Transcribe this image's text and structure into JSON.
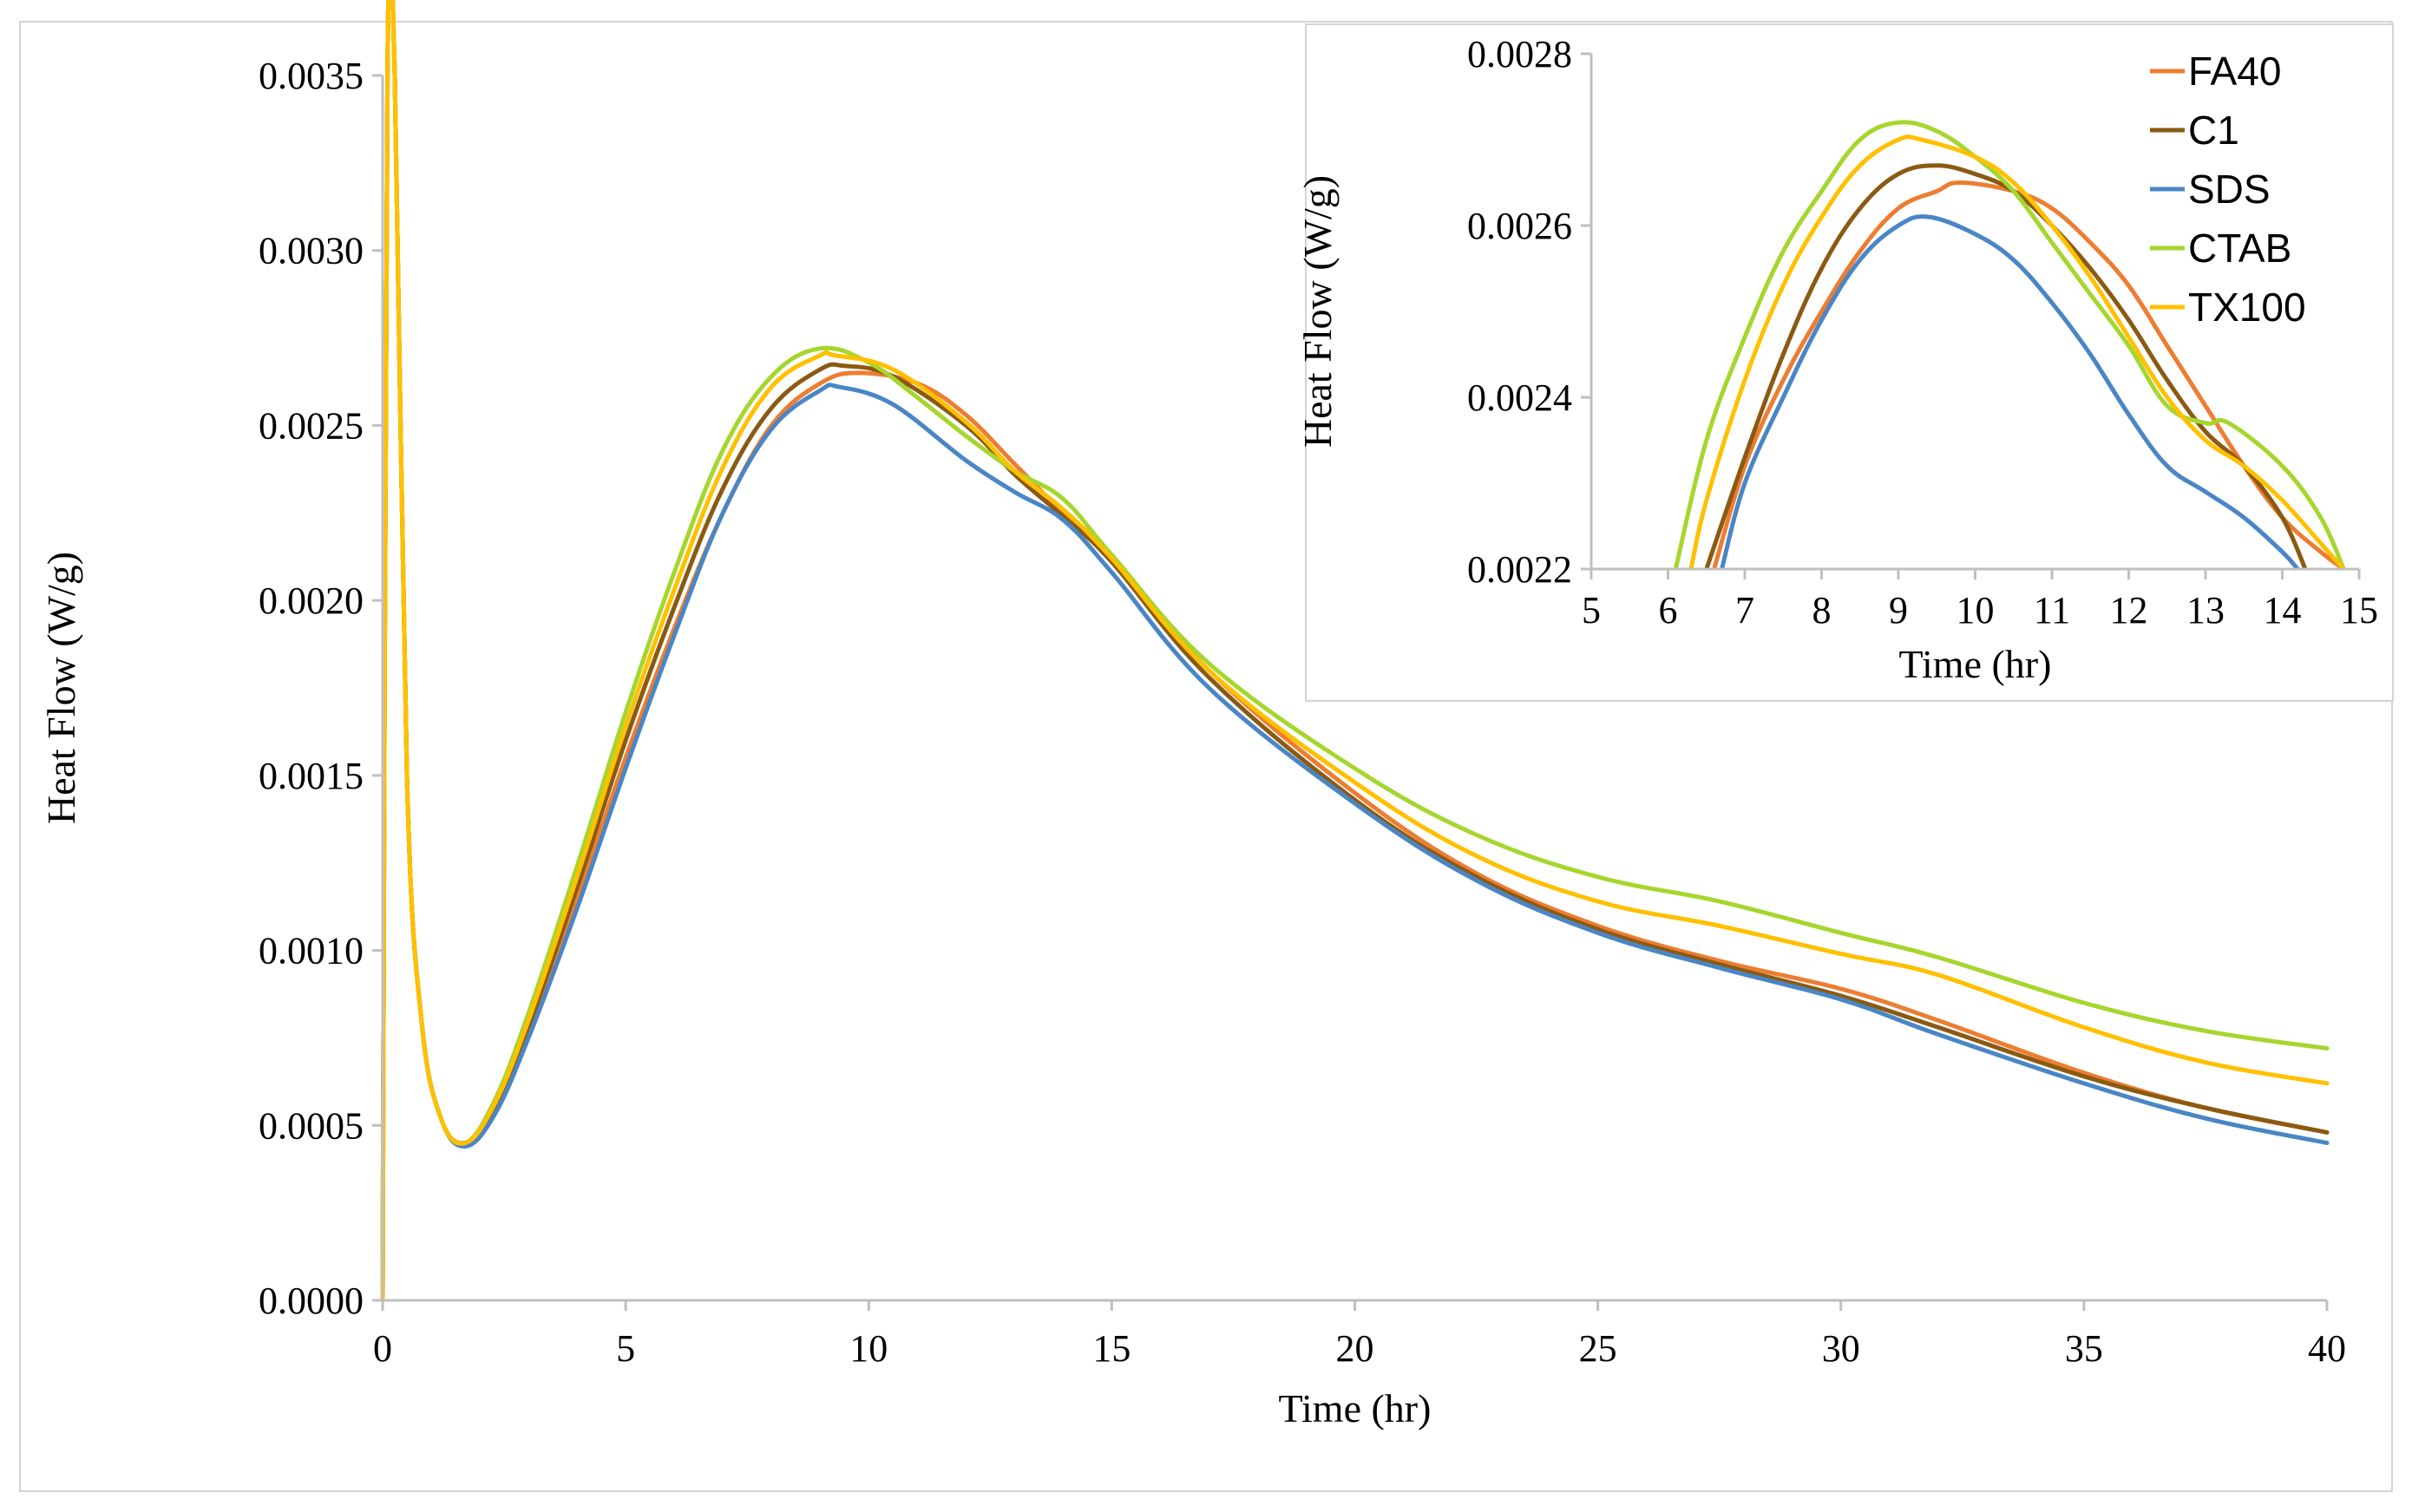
{
  "chart_data": [
    {
      "type": "line",
      "title": "",
      "xlabel": "Time (hr)",
      "ylabel": "Heat Flow (W/g)",
      "xlim": [
        0,
        40
      ],
      "ylim": [
        0,
        0.0035
      ],
      "x_ticks": [
        "0",
        "5",
        "10",
        "15",
        "20",
        "25",
        "30",
        "35",
        "40"
      ],
      "y_ticks": [
        "0.0000",
        "0.0005",
        "0.0010",
        "0.0015",
        "0.0020",
        "0.0025",
        "0.0030",
        "0.0035"
      ],
      "grid": false,
      "legend": "none",
      "series": [
        {
          "name": "FA40",
          "color": "#ed7d31",
          "points": [
            [
              0,
              0
            ],
            [
              0.1,
              0.0035
            ],
            [
              0.25,
              0.0035
            ],
            [
              0.5,
              0.0015
            ],
            [
              0.8,
              0.0008
            ],
            [
              1.2,
              0.00052
            ],
            [
              1.7,
              0.00045
            ],
            [
              2.3,
              0.00055
            ],
            [
              3,
              0.00078
            ],
            [
              4,
              0.00115
            ],
            [
              5,
              0.00155
            ],
            [
              6,
              0.00192
            ],
            [
              7,
              0.00225
            ],
            [
              8,
              0.0025
            ],
            [
              9,
              0.00262
            ],
            [
              9.8,
              0.00265
            ],
            [
              11,
              0.00262
            ],
            [
              12,
              0.00253
            ],
            [
              13,
              0.00239
            ],
            [
              14,
              0.00225
            ],
            [
              15,
              0.00212
            ],
            [
              17,
              0.0018
            ],
            [
              20,
              0.00145
            ],
            [
              22.5,
              0.00122
            ],
            [
              25,
              0.00107
            ],
            [
              27.5,
              0.00097
            ],
            [
              30,
              0.00089
            ],
            [
              32,
              0.0008
            ],
            [
              35,
              0.00065
            ],
            [
              37.5,
              0.00055
            ],
            [
              40,
              0.00048
            ]
          ]
        },
        {
          "name": "C1",
          "color": "#8b5a12",
          "points": [
            [
              0,
              0
            ],
            [
              0.1,
              0.0035
            ],
            [
              0.25,
              0.0035
            ],
            [
              0.5,
              0.0015
            ],
            [
              0.8,
              0.0008
            ],
            [
              1.2,
              0.00052
            ],
            [
              1.7,
              0.00045
            ],
            [
              2.3,
              0.00055
            ],
            [
              3,
              0.00078
            ],
            [
              4,
              0.00118
            ],
            [
              5,
              0.0016
            ],
            [
              6,
              0.00198
            ],
            [
              7,
              0.00232
            ],
            [
              8,
              0.00255
            ],
            [
              9,
              0.00266
            ],
            [
              9.5,
              0.00267
            ],
            [
              10.5,
              0.00264
            ],
            [
              12,
              0.0025
            ],
            [
              13,
              0.00236
            ],
            [
              14,
              0.00224
            ],
            [
              15,
              0.00211
            ],
            [
              17,
              0.00178
            ],
            [
              20,
              0.00143
            ],
            [
              22.5,
              0.00121
            ],
            [
              25,
              0.00106
            ],
            [
              27.5,
              0.00096
            ],
            [
              30,
              0.00087
            ],
            [
              32,
              0.00078
            ],
            [
              35,
              0.00064
            ],
            [
              37.5,
              0.00055
            ],
            [
              40,
              0.00048
            ]
          ]
        },
        {
          "name": "SDS",
          "color": "#4a86c5",
          "points": [
            [
              0,
              0
            ],
            [
              0.1,
              0.0035
            ],
            [
              0.25,
              0.0035
            ],
            [
              0.5,
              0.0015
            ],
            [
              0.8,
              0.0008
            ],
            [
              1.2,
              0.00052
            ],
            [
              1.7,
              0.00044
            ],
            [
              2.3,
              0.00053
            ],
            [
              3,
              0.00075
            ],
            [
              4,
              0.00112
            ],
            [
              5,
              0.00152
            ],
            [
              6,
              0.0019
            ],
            [
              7,
              0.00225
            ],
            [
              8,
              0.00249
            ],
            [
              9,
              0.0026
            ],
            [
              9.4,
              0.00261
            ],
            [
              10.5,
              0.00256
            ],
            [
              12,
              0.0024
            ],
            [
              13,
              0.00231
            ],
            [
              14,
              0.00223
            ],
            [
              15,
              0.00208
            ],
            [
              17,
              0.00175
            ],
            [
              20,
              0.00142
            ],
            [
              22.5,
              0.0012
            ],
            [
              25,
              0.00105
            ],
            [
              27.5,
              0.00095
            ],
            [
              30,
              0.00086
            ],
            [
              32,
              0.00076
            ],
            [
              35,
              0.00062
            ],
            [
              37.5,
              0.00052
            ],
            [
              40,
              0.00045
            ]
          ]
        },
        {
          "name": "CTAB",
          "color": "#a6d62e",
          "points": [
            [
              0,
              0
            ],
            [
              0.1,
              0.0035
            ],
            [
              0.25,
              0.0035
            ],
            [
              0.5,
              0.0015
            ],
            [
              0.8,
              0.0008
            ],
            [
              1.2,
              0.00052
            ],
            [
              1.7,
              0.00045
            ],
            [
              2.3,
              0.00057
            ],
            [
              3,
              0.00082
            ],
            [
              4,
              0.00124
            ],
            [
              5,
              0.00168
            ],
            [
              6,
              0.00208
            ],
            [
              7,
              0.00243
            ],
            [
              8,
              0.00264
            ],
            [
              9,
              0.00272
            ],
            [
              10,
              0.00268
            ],
            [
              11,
              0.00258
            ],
            [
              12,
              0.00247
            ],
            [
              13,
              0.00237
            ],
            [
              14,
              0.00229
            ],
            [
              15,
              0.00213
            ],
            [
              17,
              0.00182
            ],
            [
              20,
              0.00152
            ],
            [
              22.5,
              0.00133
            ],
            [
              25,
              0.00121
            ],
            [
              27.5,
              0.00114
            ],
            [
              30,
              0.00105
            ],
            [
              32,
              0.00098
            ],
            [
              35,
              0.00085
            ],
            [
              37.5,
              0.00077
            ],
            [
              40,
              0.00072
            ]
          ]
        },
        {
          "name": "TX100",
          "color": "#ffc000",
          "points": [
            [
              0,
              0
            ],
            [
              0.1,
              0.0035
            ],
            [
              0.25,
              0.0035
            ],
            [
              0.5,
              0.0015
            ],
            [
              0.8,
              0.0008
            ],
            [
              1.2,
              0.00052
            ],
            [
              1.7,
              0.00045
            ],
            [
              2.3,
              0.00056
            ],
            [
              3,
              0.0008
            ],
            [
              4,
              0.00121
            ],
            [
              5,
              0.00164
            ],
            [
              6,
              0.00203
            ],
            [
              7,
              0.00238
            ],
            [
              8,
              0.00261
            ],
            [
              9,
              0.0027
            ],
            [
              9.3,
              0.0027
            ],
            [
              10.5,
              0.00266
            ],
            [
              12,
              0.00251
            ],
            [
              13,
              0.00237
            ],
            [
              14,
              0.00226
            ],
            [
              15,
              0.00212
            ],
            [
              17,
              0.0018
            ],
            [
              20,
              0.00148
            ],
            [
              22.5,
              0.00127
            ],
            [
              25,
              0.00114
            ],
            [
              27.5,
              0.00107
            ],
            [
              30,
              0.00099
            ],
            [
              32,
              0.00093
            ],
            [
              35,
              0.00078
            ],
            [
              37.5,
              0.00068
            ],
            [
              40,
              0.00062
            ]
          ]
        }
      ]
    },
    {
      "type": "line",
      "title": "",
      "xlabel": "Time (hr)",
      "ylabel": "Heat Flow (W/g)",
      "xlim": [
        5,
        15
      ],
      "ylim": [
        0.0022,
        0.0028
      ],
      "x_ticks": [
        "5",
        "6",
        "7",
        "8",
        "9",
        "10",
        "11",
        "12",
        "13",
        "14",
        "15"
      ],
      "y_ticks": [
        "0.0022",
        "0.0024",
        "0.0026",
        "0.0028"
      ],
      "grid": false,
      "legend": "top-right",
      "series": [
        {
          "name": "FA40",
          "color": "#ed7d31",
          "points": [
            [
              6.6,
              0.0022
            ],
            [
              7,
              0.00232
            ],
            [
              7.5,
              0.00242
            ],
            [
              8,
              0.0025
            ],
            [
              8.5,
              0.00257
            ],
            [
              9,
              0.00262
            ],
            [
              9.5,
              0.00264
            ],
            [
              9.8,
              0.00265
            ],
            [
              10.5,
              0.00264
            ],
            [
              11,
              0.00262
            ],
            [
              11.5,
              0.00258
            ],
            [
              12,
              0.00253
            ],
            [
              12.5,
              0.00246
            ],
            [
              13,
              0.00239
            ],
            [
              13.5,
              0.00232
            ],
            [
              14,
              0.00226
            ],
            [
              14.5,
              0.00222
            ],
            [
              14.8,
              0.0022
            ]
          ]
        },
        {
          "name": "C1",
          "color": "#8b5a12",
          "points": [
            [
              6.5,
              0.0022
            ],
            [
              7,
              0.00233
            ],
            [
              7.5,
              0.00245
            ],
            [
              8,
              0.00255
            ],
            [
              8.5,
              0.00262
            ],
            [
              9,
              0.00266
            ],
            [
              9.5,
              0.00267
            ],
            [
              10,
              0.00266
            ],
            [
              10.5,
              0.00264
            ],
            [
              11,
              0.0026
            ],
            [
              11.5,
              0.00255
            ],
            [
              12,
              0.00249
            ],
            [
              12.5,
              0.00242
            ],
            [
              13,
              0.00236
            ],
            [
              13.5,
              0.00232
            ],
            [
              14,
              0.00226
            ],
            [
              14.3,
              0.0022
            ]
          ]
        },
        {
          "name": "SDS",
          "color": "#4a86c5",
          "points": [
            [
              6.7,
              0.0022
            ],
            [
              7,
              0.0023
            ],
            [
              7.5,
              0.0024
            ],
            [
              8,
              0.00249
            ],
            [
              8.5,
              0.00256
            ],
            [
              9,
              0.0026
            ],
            [
              9.4,
              0.00261
            ],
            [
              10,
              0.00259
            ],
            [
              10.5,
              0.00256
            ],
            [
              11,
              0.00251
            ],
            [
              11.5,
              0.00245
            ],
            [
              12,
              0.00238
            ],
            [
              12.5,
              0.00232
            ],
            [
              13,
              0.00229
            ],
            [
              13.5,
              0.00226
            ],
            [
              14,
              0.00222
            ],
            [
              14.2,
              0.0022
            ]
          ]
        },
        {
          "name": "CTAB",
          "color": "#a6d62e",
          "points": [
            [
              6.1,
              0.0022
            ],
            [
              6.5,
              0.00235
            ],
            [
              7,
              0.00247
            ],
            [
              7.5,
              0.00257
            ],
            [
              8,
              0.00264
            ],
            [
              8.5,
              0.0027
            ],
            [
              9,
              0.00272
            ],
            [
              9.5,
              0.00271
            ],
            [
              10,
              0.00268
            ],
            [
              10.5,
              0.00264
            ],
            [
              11,
              0.00258
            ],
            [
              11.5,
              0.00252
            ],
            [
              12,
              0.00246
            ],
            [
              12.5,
              0.00239
            ],
            [
              13,
              0.00237
            ],
            [
              13.3,
              0.00237
            ],
            [
              14,
              0.00232
            ],
            [
              14.5,
              0.00226
            ],
            [
              14.8,
              0.0022
            ]
          ]
        },
        {
          "name": "TX100",
          "color": "#ffc000",
          "points": [
            [
              6.3,
              0.0022
            ],
            [
              6.5,
              0.00228
            ],
            [
              7,
              0.00242
            ],
            [
              7.5,
              0.00253
            ],
            [
              8,
              0.00261
            ],
            [
              8.5,
              0.00267
            ],
            [
              9,
              0.0027
            ],
            [
              9.3,
              0.0027
            ],
            [
              10,
              0.00268
            ],
            [
              10.5,
              0.00265
            ],
            [
              11,
              0.0026
            ],
            [
              11.5,
              0.00254
            ],
            [
              12,
              0.00247
            ],
            [
              12.5,
              0.0024
            ],
            [
              13,
              0.00235
            ],
            [
              13.5,
              0.00232
            ],
            [
              14,
              0.00228
            ],
            [
              14.5,
              0.00223
            ],
            [
              14.8,
              0.0022
            ]
          ]
        }
      ]
    }
  ]
}
